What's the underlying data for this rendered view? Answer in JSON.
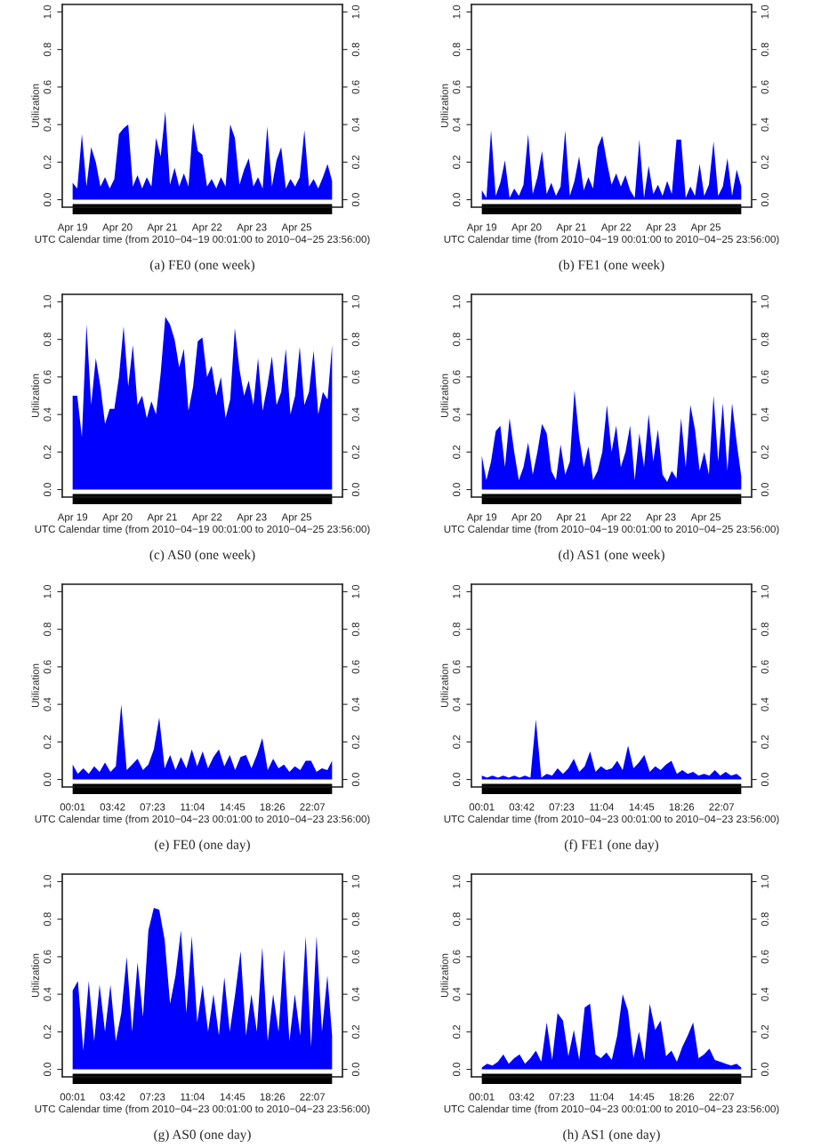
{
  "chart_data": [
    {
      "type": "area",
      "title": "(a) FE0 (one week)",
      "ylabel": "Utilization",
      "xlabel": "UTC Calendar time (from 2010−04−19 00:01:00 to 2010−04−25 23:56:00)",
      "color": "#0000ff",
      "x": [
        "2010-04-19T00:01",
        "2010-04-19T03:00",
        "2010-04-19T06:00",
        "2010-04-19T09:00",
        "2010-04-19T12:00",
        "2010-04-19T15:00",
        "2010-04-19T18:00",
        "2010-04-19T21:00",
        "2010-04-20T00:00",
        "2010-04-20T03:00",
        "2010-04-20T06:00",
        "2010-04-20T09:00",
        "2010-04-20T12:00",
        "2010-04-20T15:00",
        "2010-04-20T18:00",
        "2010-04-20T21:00",
        "2010-04-21T00:00",
        "2010-04-21T03:00",
        "2010-04-21T06:00",
        "2010-04-21T09:00",
        "2010-04-21T12:00",
        "2010-04-21T15:00",
        "2010-04-21T18:00",
        "2010-04-21T21:00",
        "2010-04-22T00:00",
        "2010-04-22T03:00",
        "2010-04-22T06:00",
        "2010-04-22T09:00",
        "2010-04-22T12:00",
        "2010-04-22T15:00",
        "2010-04-22T18:00",
        "2010-04-22T21:00",
        "2010-04-23T00:00",
        "2010-04-23T03:00",
        "2010-04-23T06:00",
        "2010-04-23T09:00",
        "2010-04-23T12:00",
        "2010-04-23T15:00",
        "2010-04-23T18:00",
        "2010-04-23T21:00",
        "2010-04-24T00:00",
        "2010-04-24T03:00",
        "2010-04-24T06:00",
        "2010-04-24T09:00",
        "2010-04-24T12:00",
        "2010-04-24T15:00",
        "2010-04-24T18:00",
        "2010-04-24T21:00",
        "2010-04-25T00:00",
        "2010-04-25T03:00",
        "2010-04-25T06:00",
        "2010-04-25T09:00",
        "2010-04-25T12:00",
        "2010-04-25T15:00",
        "2010-04-25T18:00",
        "2010-04-25T21:00",
        "2010-04-25T23:56"
      ],
      "values": [
        0.09,
        0.06,
        0.35,
        0.07,
        0.28,
        0.2,
        0.07,
        0.12,
        0.06,
        0.11,
        0.35,
        0.38,
        0.4,
        0.07,
        0.13,
        0.06,
        0.12,
        0.07,
        0.33,
        0.23,
        0.47,
        0.08,
        0.17,
        0.07,
        0.14,
        0.07,
        0.41,
        0.26,
        0.24,
        0.07,
        0.11,
        0.06,
        0.12,
        0.07,
        0.4,
        0.33,
        0.08,
        0.16,
        0.22,
        0.07,
        0.12,
        0.06,
        0.39,
        0.07,
        0.21,
        0.28,
        0.06,
        0.11,
        0.07,
        0.12,
        0.37,
        0.07,
        0.11,
        0.06,
        0.12,
        0.19,
        0.1
      ],
      "xlim": [
        "2010-04-18T17:18",
        "2010-04-26T06:39"
      ],
      "xticks": [
        {
          "value": "2010-04-19T00:01",
          "label": "Apr 19"
        },
        {
          "value": "2010-04-20T05:01",
          "label": "Apr 20"
        },
        {
          "value": "2010-04-21T10:01",
          "label": "Apr 21"
        },
        {
          "value": "2010-04-22T15:01",
          "label": "Apr 22"
        },
        {
          "value": "2010-04-23T20:01",
          "label": "Apr 23"
        },
        {
          "value": "2010-04-25T01:01",
          "label": "Apr 25"
        }
      ],
      "ylim": [
        -0.04,
        1.04
      ],
      "yticks": [
        {
          "value": 0,
          "label": "0.0"
        },
        {
          "value": 0.2,
          "label": "0.2"
        },
        {
          "value": 0.4,
          "label": "0.4"
        },
        {
          "value": 0.6,
          "label": "0.6"
        },
        {
          "value": 0.8,
          "label": "0.8"
        },
        {
          "value": 1,
          "label": "1.0"
        }
      ],
      "y2lim": [
        -0.04,
        1.04
      ],
      "y2ticks": [
        {
          "value": 0,
          "label": "0.0"
        },
        {
          "value": 0.2,
          "label": "0.2"
        },
        {
          "value": 0.4,
          "label": "0.4"
        },
        {
          "value": 0.6,
          "label": "0.6"
        },
        {
          "value": 0.8,
          "label": "0.8"
        },
        {
          "value": 1,
          "label": "1.0"
        }
      ]
    },
    {
      "type": "area",
      "title": "(b) FE1 (one week)",
      "ylabel": "Utilization",
      "xlabel": "UTC Calendar time (from 2010−04−19 00:01:00 to 2010−04−25 23:56:00)",
      "color": "#0000ff",
      "x": [
        "2010-04-19T00:01",
        "2010-04-19T03:00",
        "2010-04-19T06:00",
        "2010-04-19T09:00",
        "2010-04-19T12:00",
        "2010-04-19T15:00",
        "2010-04-19T18:00",
        "2010-04-19T21:00",
        "2010-04-20T00:00",
        "2010-04-20T03:00",
        "2010-04-20T06:00",
        "2010-04-20T09:00",
        "2010-04-20T12:00",
        "2010-04-20T15:00",
        "2010-04-20T18:00",
        "2010-04-20T21:00",
        "2010-04-21T00:00",
        "2010-04-21T03:00",
        "2010-04-21T06:00",
        "2010-04-21T09:00",
        "2010-04-21T12:00",
        "2010-04-21T15:00",
        "2010-04-21T18:00",
        "2010-04-21T21:00",
        "2010-04-22T00:00",
        "2010-04-22T03:00",
        "2010-04-22T06:00",
        "2010-04-22T09:00",
        "2010-04-22T12:00",
        "2010-04-22T15:00",
        "2010-04-22T18:00",
        "2010-04-22T21:00",
        "2010-04-23T00:00",
        "2010-04-23T03:00",
        "2010-04-23T06:00",
        "2010-04-23T09:00",
        "2010-04-23T12:00",
        "2010-04-23T15:00",
        "2010-04-23T18:00",
        "2010-04-23T21:00",
        "2010-04-24T00:00",
        "2010-04-24T03:00",
        "2010-04-24T06:00",
        "2010-04-24T09:00",
        "2010-04-24T12:00",
        "2010-04-24T15:00",
        "2010-04-24T18:00",
        "2010-04-24T21:00",
        "2010-04-25T00:00",
        "2010-04-25T03:00",
        "2010-04-25T06:00",
        "2010-04-25T09:00",
        "2010-04-25T12:00",
        "2010-04-25T15:00",
        "2010-04-25T18:00",
        "2010-04-25T21:00",
        "2010-04-25T23:56"
      ],
      "values": [
        0.05,
        0.01,
        0.37,
        0.02,
        0.09,
        0.21,
        0.01,
        0.06,
        0.02,
        0.08,
        0.35,
        0.03,
        0.12,
        0.26,
        0.03,
        0.09,
        0.02,
        0.07,
        0.37,
        0.02,
        0.1,
        0.23,
        0.05,
        0.12,
        0.06,
        0.28,
        0.34,
        0.2,
        0.08,
        0.14,
        0.07,
        0.13,
        0.05,
        0.01,
        0.32,
        0.01,
        0.18,
        0.03,
        0.08,
        0.02,
        0.1,
        0.03,
        0.32,
        0.32,
        0.01,
        0.07,
        0.02,
        0.19,
        0.02,
        0.08,
        0.31,
        0.02,
        0.07,
        0.22,
        0.02,
        0.16,
        0.07
      ],
      "xlim": [
        "2010-04-18T17:18",
        "2010-04-26T06:39"
      ],
      "xticks": [
        {
          "value": "2010-04-19T00:01",
          "label": "Apr 19"
        },
        {
          "value": "2010-04-20T05:01",
          "label": "Apr 20"
        },
        {
          "value": "2010-04-21T10:01",
          "label": "Apr 21"
        },
        {
          "value": "2010-04-22T15:01",
          "label": "Apr 22"
        },
        {
          "value": "2010-04-23T20:01",
          "label": "Apr 23"
        },
        {
          "value": "2010-04-25T01:01",
          "label": "Apr 25"
        }
      ],
      "ylim": [
        -0.04,
        1.04
      ],
      "yticks": [
        {
          "value": 0,
          "label": "0.0"
        },
        {
          "value": 0.2,
          "label": "0.2"
        },
        {
          "value": 0.4,
          "label": "0.4"
        },
        {
          "value": 0.6,
          "label": "0.6"
        },
        {
          "value": 0.8,
          "label": "0.8"
        },
        {
          "value": 1,
          "label": "1.0"
        }
      ],
      "y2lim": [
        -0.04,
        1.04
      ],
      "y2ticks": [
        {
          "value": 0,
          "label": "0.0"
        },
        {
          "value": 0.2,
          "label": "0.2"
        },
        {
          "value": 0.4,
          "label": "0.4"
        },
        {
          "value": 0.6,
          "label": "0.6"
        },
        {
          "value": 0.8,
          "label": "0.8"
        },
        {
          "value": 1,
          "label": "1.0"
        }
      ]
    },
    {
      "type": "area",
      "title": "(c) AS0 (one week)",
      "ylabel": "Utilization",
      "xlabel": "UTC Calendar time (from 2010−04−19 00:01:00 to 2010−04−25 23:56:00)",
      "color": "#0000ff",
      "x": [
        "2010-04-19T00:01",
        "2010-04-19T03:00",
        "2010-04-19T06:00",
        "2010-04-19T09:00",
        "2010-04-19T12:00",
        "2010-04-19T15:00",
        "2010-04-19T18:00",
        "2010-04-19T21:00",
        "2010-04-20T00:00",
        "2010-04-20T03:00",
        "2010-04-20T06:00",
        "2010-04-20T09:00",
        "2010-04-20T12:00",
        "2010-04-20T15:00",
        "2010-04-20T18:00",
        "2010-04-20T21:00",
        "2010-04-21T00:00",
        "2010-04-21T03:00",
        "2010-04-21T06:00",
        "2010-04-21T09:00",
        "2010-04-21T12:00",
        "2010-04-21T15:00",
        "2010-04-21T18:00",
        "2010-04-21T21:00",
        "2010-04-22T00:00",
        "2010-04-22T03:00",
        "2010-04-22T06:00",
        "2010-04-22T09:00",
        "2010-04-22T12:00",
        "2010-04-22T15:00",
        "2010-04-22T18:00",
        "2010-04-22T21:00",
        "2010-04-23T00:00",
        "2010-04-23T03:00",
        "2010-04-23T06:00",
        "2010-04-23T09:00",
        "2010-04-23T12:00",
        "2010-04-23T15:00",
        "2010-04-23T18:00",
        "2010-04-23T21:00",
        "2010-04-24T00:00",
        "2010-04-24T03:00",
        "2010-04-24T06:00",
        "2010-04-24T09:00",
        "2010-04-24T12:00",
        "2010-04-24T15:00",
        "2010-04-24T18:00",
        "2010-04-24T21:00",
        "2010-04-25T00:00",
        "2010-04-25T03:00",
        "2010-04-25T06:00",
        "2010-04-25T09:00",
        "2010-04-25T12:00",
        "2010-04-25T15:00",
        "2010-04-25T18:00",
        "2010-04-25T21:00",
        "2010-04-25T23:56"
      ],
      "values": [
        0.5,
        0.5,
        0.28,
        0.88,
        0.45,
        0.7,
        0.55,
        0.35,
        0.43,
        0.43,
        0.6,
        0.87,
        0.55,
        0.77,
        0.45,
        0.5,
        0.38,
        0.47,
        0.4,
        0.62,
        0.92,
        0.88,
        0.8,
        0.65,
        0.75,
        0.42,
        0.55,
        0.79,
        0.81,
        0.6,
        0.66,
        0.5,
        0.6,
        0.38,
        0.48,
        0.86,
        0.64,
        0.5,
        0.58,
        0.45,
        0.7,
        0.42,
        0.55,
        0.71,
        0.45,
        0.52,
        0.75,
        0.4,
        0.5,
        0.76,
        0.45,
        0.52,
        0.74,
        0.4,
        0.52,
        0.48,
        0.77
      ],
      "xlim": [
        "2010-04-18T17:18",
        "2010-04-26T06:39"
      ],
      "xticks": [
        {
          "value": "2010-04-19T00:01",
          "label": "Apr 19"
        },
        {
          "value": "2010-04-20T05:01",
          "label": "Apr 20"
        },
        {
          "value": "2010-04-21T10:01",
          "label": "Apr 21"
        },
        {
          "value": "2010-04-22T15:01",
          "label": "Apr 22"
        },
        {
          "value": "2010-04-23T20:01",
          "label": "Apr 23"
        },
        {
          "value": "2010-04-25T01:01",
          "label": "Apr 25"
        }
      ],
      "ylim": [
        -0.04,
        1.04
      ],
      "yticks": [
        {
          "value": 0,
          "label": "0.0"
        },
        {
          "value": 0.2,
          "label": "0.2"
        },
        {
          "value": 0.4,
          "label": "0.4"
        },
        {
          "value": 0.6,
          "label": "0.6"
        },
        {
          "value": 0.8,
          "label": "0.8"
        },
        {
          "value": 1,
          "label": "1.0"
        }
      ],
      "y2lim": [
        -0.04,
        1.04
      ],
      "y2ticks": [
        {
          "value": 0,
          "label": "0.0"
        },
        {
          "value": 0.2,
          "label": "0.2"
        },
        {
          "value": 0.4,
          "label": "0.4"
        },
        {
          "value": 0.6,
          "label": "0.6"
        },
        {
          "value": 0.8,
          "label": "0.8"
        },
        {
          "value": 1,
          "label": "1.0"
        }
      ]
    },
    {
      "type": "area",
      "title": "(d) AS1 (one week)",
      "ylabel": "Utilization",
      "xlabel": "UTC Calendar time (from 2010−04−19 00:01:00 to 2010−04−25 23:56:00)",
      "color": "#0000ff",
      "x": [
        "2010-04-19T00:01",
        "2010-04-19T03:00",
        "2010-04-19T06:00",
        "2010-04-19T09:00",
        "2010-04-19T12:00",
        "2010-04-19T15:00",
        "2010-04-19T18:00",
        "2010-04-19T21:00",
        "2010-04-20T00:00",
        "2010-04-20T03:00",
        "2010-04-20T06:00",
        "2010-04-20T09:00",
        "2010-04-20T12:00",
        "2010-04-20T15:00",
        "2010-04-20T18:00",
        "2010-04-20T21:00",
        "2010-04-21T00:00",
        "2010-04-21T03:00",
        "2010-04-21T06:00",
        "2010-04-21T09:00",
        "2010-04-21T12:00",
        "2010-04-21T15:00",
        "2010-04-21T18:00",
        "2010-04-21T21:00",
        "2010-04-22T00:00",
        "2010-04-22T03:00",
        "2010-04-22T06:00",
        "2010-04-22T09:00",
        "2010-04-22T12:00",
        "2010-04-22T15:00",
        "2010-04-22T18:00",
        "2010-04-22T21:00",
        "2010-04-23T00:00",
        "2010-04-23T03:00",
        "2010-04-23T06:00",
        "2010-04-23T09:00",
        "2010-04-23T12:00",
        "2010-04-23T15:00",
        "2010-04-23T18:00",
        "2010-04-23T21:00",
        "2010-04-24T00:00",
        "2010-04-24T03:00",
        "2010-04-24T06:00",
        "2010-04-24T09:00",
        "2010-04-24T12:00",
        "2010-04-24T15:00",
        "2010-04-24T18:00",
        "2010-04-24T21:00",
        "2010-04-25T00:00",
        "2010-04-25T03:00",
        "2010-04-25T06:00",
        "2010-04-25T09:00",
        "2010-04-25T12:00",
        "2010-04-25T15:00",
        "2010-04-25T18:00",
        "2010-04-25T21:00",
        "2010-04-25T23:56"
      ],
      "values": [
        0.18,
        0.05,
        0.15,
        0.31,
        0.34,
        0.12,
        0.38,
        0.2,
        0.05,
        0.12,
        0.25,
        0.08,
        0.2,
        0.35,
        0.3,
        0.1,
        0.05,
        0.24,
        0.08,
        0.15,
        0.53,
        0.28,
        0.12,
        0.23,
        0.05,
        0.1,
        0.2,
        0.45,
        0.2,
        0.34,
        0.12,
        0.2,
        0.34,
        0.05,
        0.3,
        0.12,
        0.4,
        0.15,
        0.32,
        0.08,
        0.04,
        0.1,
        0.06,
        0.38,
        0.12,
        0.45,
        0.32,
        0.1,
        0.2,
        0.08,
        0.5,
        0.15,
        0.46,
        0.1,
        0.46,
        0.25,
        0.07
      ],
      "xlim": [
        "2010-04-18T17:18",
        "2010-04-26T06:39"
      ],
      "xticks": [
        {
          "value": "2010-04-19T00:01",
          "label": "Apr 19"
        },
        {
          "value": "2010-04-20T05:01",
          "label": "Apr 20"
        },
        {
          "value": "2010-04-21T10:01",
          "label": "Apr 21"
        },
        {
          "value": "2010-04-22T15:01",
          "label": "Apr 22"
        },
        {
          "value": "2010-04-23T20:01",
          "label": "Apr 23"
        },
        {
          "value": "2010-04-25T01:01",
          "label": "Apr 25"
        }
      ],
      "ylim": [
        -0.04,
        1.04
      ],
      "yticks": [
        {
          "value": 0,
          "label": "0.0"
        },
        {
          "value": 0.2,
          "label": "0.2"
        },
        {
          "value": 0.4,
          "label": "0.4"
        },
        {
          "value": 0.6,
          "label": "0.6"
        },
        {
          "value": 0.8,
          "label": "0.8"
        },
        {
          "value": 1,
          "label": "1.0"
        }
      ],
      "y2lim": [
        -0.04,
        1.04
      ],
      "y2ticks": [
        {
          "value": 0,
          "label": "0.0"
        },
        {
          "value": 0.2,
          "label": "0.2"
        },
        {
          "value": 0.4,
          "label": "0.4"
        },
        {
          "value": 0.6,
          "label": "0.6"
        },
        {
          "value": 0.8,
          "label": "0.8"
        },
        {
          "value": 1,
          "label": "1.0"
        }
      ]
    },
    {
      "type": "area",
      "title": "(e) FE0 (one day)",
      "ylabel": "Utilization",
      "xlabel": "UTC Calendar time (from 2010−04−23 00:01:00 to 2010−04−23 23:56:00)",
      "color": "#0000ff",
      "x": [
        0.0167,
        0.5,
        1,
        1.5,
        2,
        2.5,
        3,
        3.5,
        4,
        4.5,
        5,
        5.5,
        6,
        6.5,
        7,
        7.5,
        8,
        8.5,
        9,
        9.5,
        10,
        10.5,
        11,
        11.5,
        12,
        12.5,
        13,
        13.5,
        14,
        14.5,
        15,
        15.5,
        16,
        16.5,
        17,
        17.5,
        18,
        18.5,
        19,
        19.5,
        20,
        20.5,
        21,
        21.5,
        22,
        22.5,
        23,
        23.5,
        23.9333
      ],
      "values": [
        0.08,
        0.03,
        0.06,
        0.03,
        0.07,
        0.04,
        0.09,
        0.04,
        0.07,
        0.4,
        0.05,
        0.08,
        0.11,
        0.05,
        0.08,
        0.16,
        0.33,
        0.06,
        0.13,
        0.05,
        0.12,
        0.06,
        0.16,
        0.07,
        0.15,
        0.06,
        0.12,
        0.16,
        0.07,
        0.13,
        0.05,
        0.12,
        0.13,
        0.06,
        0.13,
        0.22,
        0.05,
        0.11,
        0.06,
        0.08,
        0.04,
        0.07,
        0.05,
        0.1,
        0.1,
        0.04,
        0.06,
        0.05,
        0.1
      ],
      "xlim": [
        -0.94,
        24.89
      ],
      "xticks": [
        {
          "value": 0.0167,
          "label": "00:01"
        },
        {
          "value": 3.7,
          "label": "03:42"
        },
        {
          "value": 7.3833,
          "label": "07:23"
        },
        {
          "value": 11.0667,
          "label": "11:04"
        },
        {
          "value": 14.75,
          "label": "14:45"
        },
        {
          "value": 18.4333,
          "label": "18:26"
        },
        {
          "value": 22.1167,
          "label": "22:07"
        }
      ],
      "ylim": [
        -0.04,
        1.04
      ],
      "yticks": [
        {
          "value": 0,
          "label": "0.0"
        },
        {
          "value": 0.2,
          "label": "0.2"
        },
        {
          "value": 0.4,
          "label": "0.4"
        },
        {
          "value": 0.6,
          "label": "0.6"
        },
        {
          "value": 0.8,
          "label": "0.8"
        },
        {
          "value": 1,
          "label": "1.0"
        }
      ],
      "y2lim": [
        -0.04,
        1.04
      ],
      "y2ticks": [
        {
          "value": 0,
          "label": "0.0"
        },
        {
          "value": 0.2,
          "label": "0.2"
        },
        {
          "value": 0.4,
          "label": "0.4"
        },
        {
          "value": 0.6,
          "label": "0.6"
        },
        {
          "value": 0.8,
          "label": "0.8"
        },
        {
          "value": 1,
          "label": "1.0"
        }
      ]
    },
    {
      "type": "area",
      "title": "(f) FE1 (one day)",
      "ylabel": "Utilization",
      "xlabel": "UTC Calendar time (from 2010−04−23 00:01:00 to 2010−04−23 23:56:00)",
      "color": "#0000ff",
      "x": [
        0.0167,
        0.5,
        1,
        1.5,
        2,
        2.5,
        3,
        3.5,
        4,
        4.5,
        5,
        5.5,
        6,
        6.5,
        7,
        7.5,
        8,
        8.5,
        9,
        9.5,
        10,
        10.5,
        11,
        11.5,
        12,
        12.5,
        13,
        13.5,
        14,
        14.5,
        15,
        15.5,
        16,
        16.5,
        17,
        17.5,
        18,
        18.5,
        19,
        19.5,
        20,
        20.5,
        21,
        21.5,
        22,
        22.5,
        23,
        23.5,
        23.9333
      ],
      "values": [
        0.02,
        0.01,
        0.02,
        0.01,
        0.02,
        0.01,
        0.02,
        0.01,
        0.02,
        0.01,
        0.32,
        0.01,
        0.03,
        0.02,
        0.06,
        0.03,
        0.06,
        0.11,
        0.04,
        0.07,
        0.15,
        0.04,
        0.07,
        0.05,
        0.06,
        0.1,
        0.05,
        0.18,
        0.06,
        0.09,
        0.13,
        0.04,
        0.07,
        0.05,
        0.08,
        0.1,
        0.03,
        0.05,
        0.03,
        0.04,
        0.02,
        0.03,
        0.02,
        0.05,
        0.02,
        0.04,
        0.02,
        0.03,
        0.01
      ],
      "xlim": [
        -0.94,
        24.89
      ],
      "xticks": [
        {
          "value": 0.0167,
          "label": "00:01"
        },
        {
          "value": 3.7,
          "label": "03:42"
        },
        {
          "value": 7.3833,
          "label": "07:23"
        },
        {
          "value": 11.0667,
          "label": "11:04"
        },
        {
          "value": 14.75,
          "label": "14:45"
        },
        {
          "value": 18.4333,
          "label": "18:26"
        },
        {
          "value": 22.1167,
          "label": "22:07"
        }
      ],
      "ylim": [
        -0.04,
        1.04
      ],
      "yticks": [
        {
          "value": 0,
          "label": "0.0"
        },
        {
          "value": 0.2,
          "label": "0.2"
        },
        {
          "value": 0.4,
          "label": "0.4"
        },
        {
          "value": 0.6,
          "label": "0.6"
        },
        {
          "value": 0.8,
          "label": "0.8"
        },
        {
          "value": 1,
          "label": "1.0"
        }
      ],
      "y2lim": [
        -0.04,
        1.04
      ],
      "y2ticks": [
        {
          "value": 0,
          "label": "0.0"
        },
        {
          "value": 0.2,
          "label": "0.2"
        },
        {
          "value": 0.4,
          "label": "0.4"
        },
        {
          "value": 0.6,
          "label": "0.6"
        },
        {
          "value": 0.8,
          "label": "0.8"
        },
        {
          "value": 1,
          "label": "1.0"
        }
      ]
    },
    {
      "type": "area",
      "title": "(g) AS0 (one day)",
      "ylabel": "Utilization",
      "xlabel": "UTC Calendar time (from 2010−04−23 00:01:00 to 2010−04−23 23:56:00)",
      "color": "#0000ff",
      "x": [
        0.0167,
        0.5,
        1,
        1.5,
        2,
        2.5,
        3,
        3.5,
        4,
        4.5,
        5,
        5.5,
        6,
        6.5,
        7,
        7.5,
        8,
        8.5,
        9,
        9.5,
        10,
        10.5,
        11,
        11.5,
        12,
        12.5,
        13,
        13.5,
        14,
        14.5,
        15,
        15.5,
        16,
        16.5,
        17,
        17.5,
        18,
        18.5,
        19,
        19.5,
        20,
        20.5,
        21,
        21.5,
        22,
        22.5,
        23,
        23.5,
        23.9333
      ],
      "values": [
        0.42,
        0.47,
        0.1,
        0.47,
        0.15,
        0.45,
        0.2,
        0.45,
        0.15,
        0.3,
        0.6,
        0.2,
        0.57,
        0.28,
        0.74,
        0.86,
        0.85,
        0.69,
        0.35,
        0.5,
        0.74,
        0.3,
        0.71,
        0.25,
        0.45,
        0.2,
        0.4,
        0.18,
        0.49,
        0.2,
        0.4,
        0.63,
        0.18,
        0.4,
        0.2,
        0.65,
        0.15,
        0.4,
        0.2,
        0.64,
        0.15,
        0.4,
        0.18,
        0.71,
        0.12,
        0.71,
        0.2,
        0.5,
        0.18
      ],
      "xlim": [
        -0.94,
        24.89
      ],
      "xticks": [
        {
          "value": 0.0167,
          "label": "00:01"
        },
        {
          "value": 3.7,
          "label": "03:42"
        },
        {
          "value": 7.3833,
          "label": "07:23"
        },
        {
          "value": 11.0667,
          "label": "11:04"
        },
        {
          "value": 14.75,
          "label": "14:45"
        },
        {
          "value": 18.4333,
          "label": "18:26"
        },
        {
          "value": 22.1167,
          "label": "22:07"
        }
      ],
      "ylim": [
        -0.04,
        1.04
      ],
      "yticks": [
        {
          "value": 0,
          "label": "0.0"
        },
        {
          "value": 0.2,
          "label": "0.2"
        },
        {
          "value": 0.4,
          "label": "0.4"
        },
        {
          "value": 0.6,
          "label": "0.6"
        },
        {
          "value": 0.8,
          "label": "0.8"
        },
        {
          "value": 1,
          "label": "1.0"
        }
      ],
      "y2lim": [
        -0.04,
        1.04
      ],
      "y2ticks": [
        {
          "value": 0,
          "label": "0.0"
        },
        {
          "value": 0.2,
          "label": "0.2"
        },
        {
          "value": 0.4,
          "label": "0.4"
        },
        {
          "value": 0.6,
          "label": "0.6"
        },
        {
          "value": 0.8,
          "label": "0.8"
        },
        {
          "value": 1,
          "label": "1.0"
        }
      ]
    },
    {
      "type": "area",
      "title": "(h) AS1 (one day)",
      "ylabel": "Utilization",
      "xlabel": "UTC Calendar time (from 2010−04−23 00:01:00 to 2010−04−23 23:56:00)",
      "color": "#0000ff",
      "x": [
        0.0167,
        0.5,
        1,
        1.5,
        2,
        2.5,
        3,
        3.5,
        4,
        4.5,
        5,
        5.5,
        6,
        6.5,
        7,
        7.5,
        8,
        8.5,
        9,
        9.5,
        10,
        10.5,
        11,
        11.5,
        12,
        12.5,
        13,
        13.5,
        14,
        14.5,
        15,
        15.5,
        16,
        16.5,
        17,
        17.5,
        18,
        18.5,
        19,
        19.5,
        20,
        20.5,
        21,
        21.5,
        22,
        22.5,
        23,
        23.5,
        23.9333
      ],
      "values": [
        0.01,
        0.03,
        0.02,
        0.04,
        0.08,
        0.03,
        0.06,
        0.08,
        0.03,
        0.06,
        0.1,
        0.04,
        0.25,
        0.05,
        0.3,
        0.26,
        0.07,
        0.21,
        0.05,
        0.33,
        0.35,
        0.08,
        0.06,
        0.09,
        0.05,
        0.18,
        0.4,
        0.31,
        0.06,
        0.2,
        0.05,
        0.35,
        0.21,
        0.26,
        0.07,
        0.1,
        0.04,
        0.12,
        0.18,
        0.25,
        0.06,
        0.08,
        0.11,
        0.05,
        0.04,
        0.03,
        0.02,
        0.03,
        0.01
      ],
      "xlim": [
        -0.94,
        24.89
      ],
      "xticks": [
        {
          "value": 0.0167,
          "label": "00:01"
        },
        {
          "value": 3.7,
          "label": "03:42"
        },
        {
          "value": 7.3833,
          "label": "07:23"
        },
        {
          "value": 11.0667,
          "label": "11:04"
        },
        {
          "value": 14.75,
          "label": "14:45"
        },
        {
          "value": 18.4333,
          "label": "18:26"
        },
        {
          "value": 22.1167,
          "label": "22:07"
        }
      ],
      "ylim": [
        -0.04,
        1.04
      ],
      "yticks": [
        {
          "value": 0,
          "label": "0.0"
        },
        {
          "value": 0.2,
          "label": "0.2"
        },
        {
          "value": 0.4,
          "label": "0.4"
        },
        {
          "value": 0.6,
          "label": "0.6"
        },
        {
          "value": 0.8,
          "label": "0.8"
        },
        {
          "value": 1,
          "label": "1.0"
        }
      ],
      "y2lim": [
        -0.04,
        1.04
      ],
      "y2ticks": [
        {
          "value": 0,
          "label": "0.0"
        },
        {
          "value": 0.2,
          "label": "0.2"
        },
        {
          "value": 0.4,
          "label": "0.4"
        },
        {
          "value": 0.6,
          "label": "0.6"
        },
        {
          "value": 0.8,
          "label": "0.8"
        },
        {
          "value": 1,
          "label": "1.0"
        }
      ]
    }
  ]
}
